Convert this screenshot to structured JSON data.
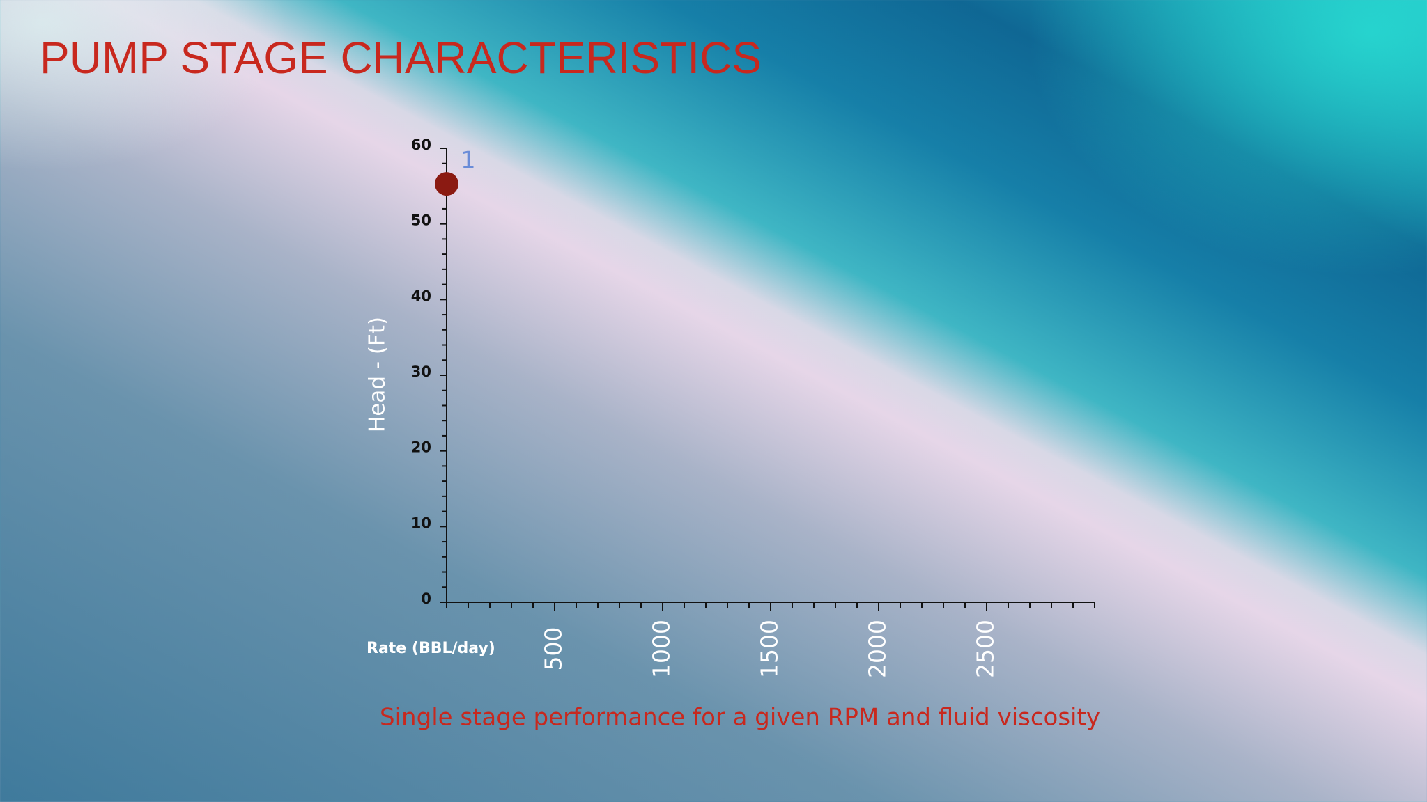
{
  "chart_data": {
    "type": "scatter",
    "title": "PUMP STAGE CHARACTERISTICS",
    "subtitle": "Single stage performance for a given RPM and fluid viscosity",
    "x_label": "Rate (BBL/day)",
    "y_label": "Head -  (Ft)",
    "annotation": "1",
    "x": [
      0
    ],
    "values": [
      55.3
    ],
    "color": "#8b1a12",
    "xlim": [
      0,
      3000
    ],
    "xticks": [
      500,
      1000,
      1500,
      2000,
      2500
    ],
    "ylim": [
      0,
      60
    ],
    "yticks": [
      0,
      10,
      20,
      30,
      40,
      50,
      60
    ]
  }
}
